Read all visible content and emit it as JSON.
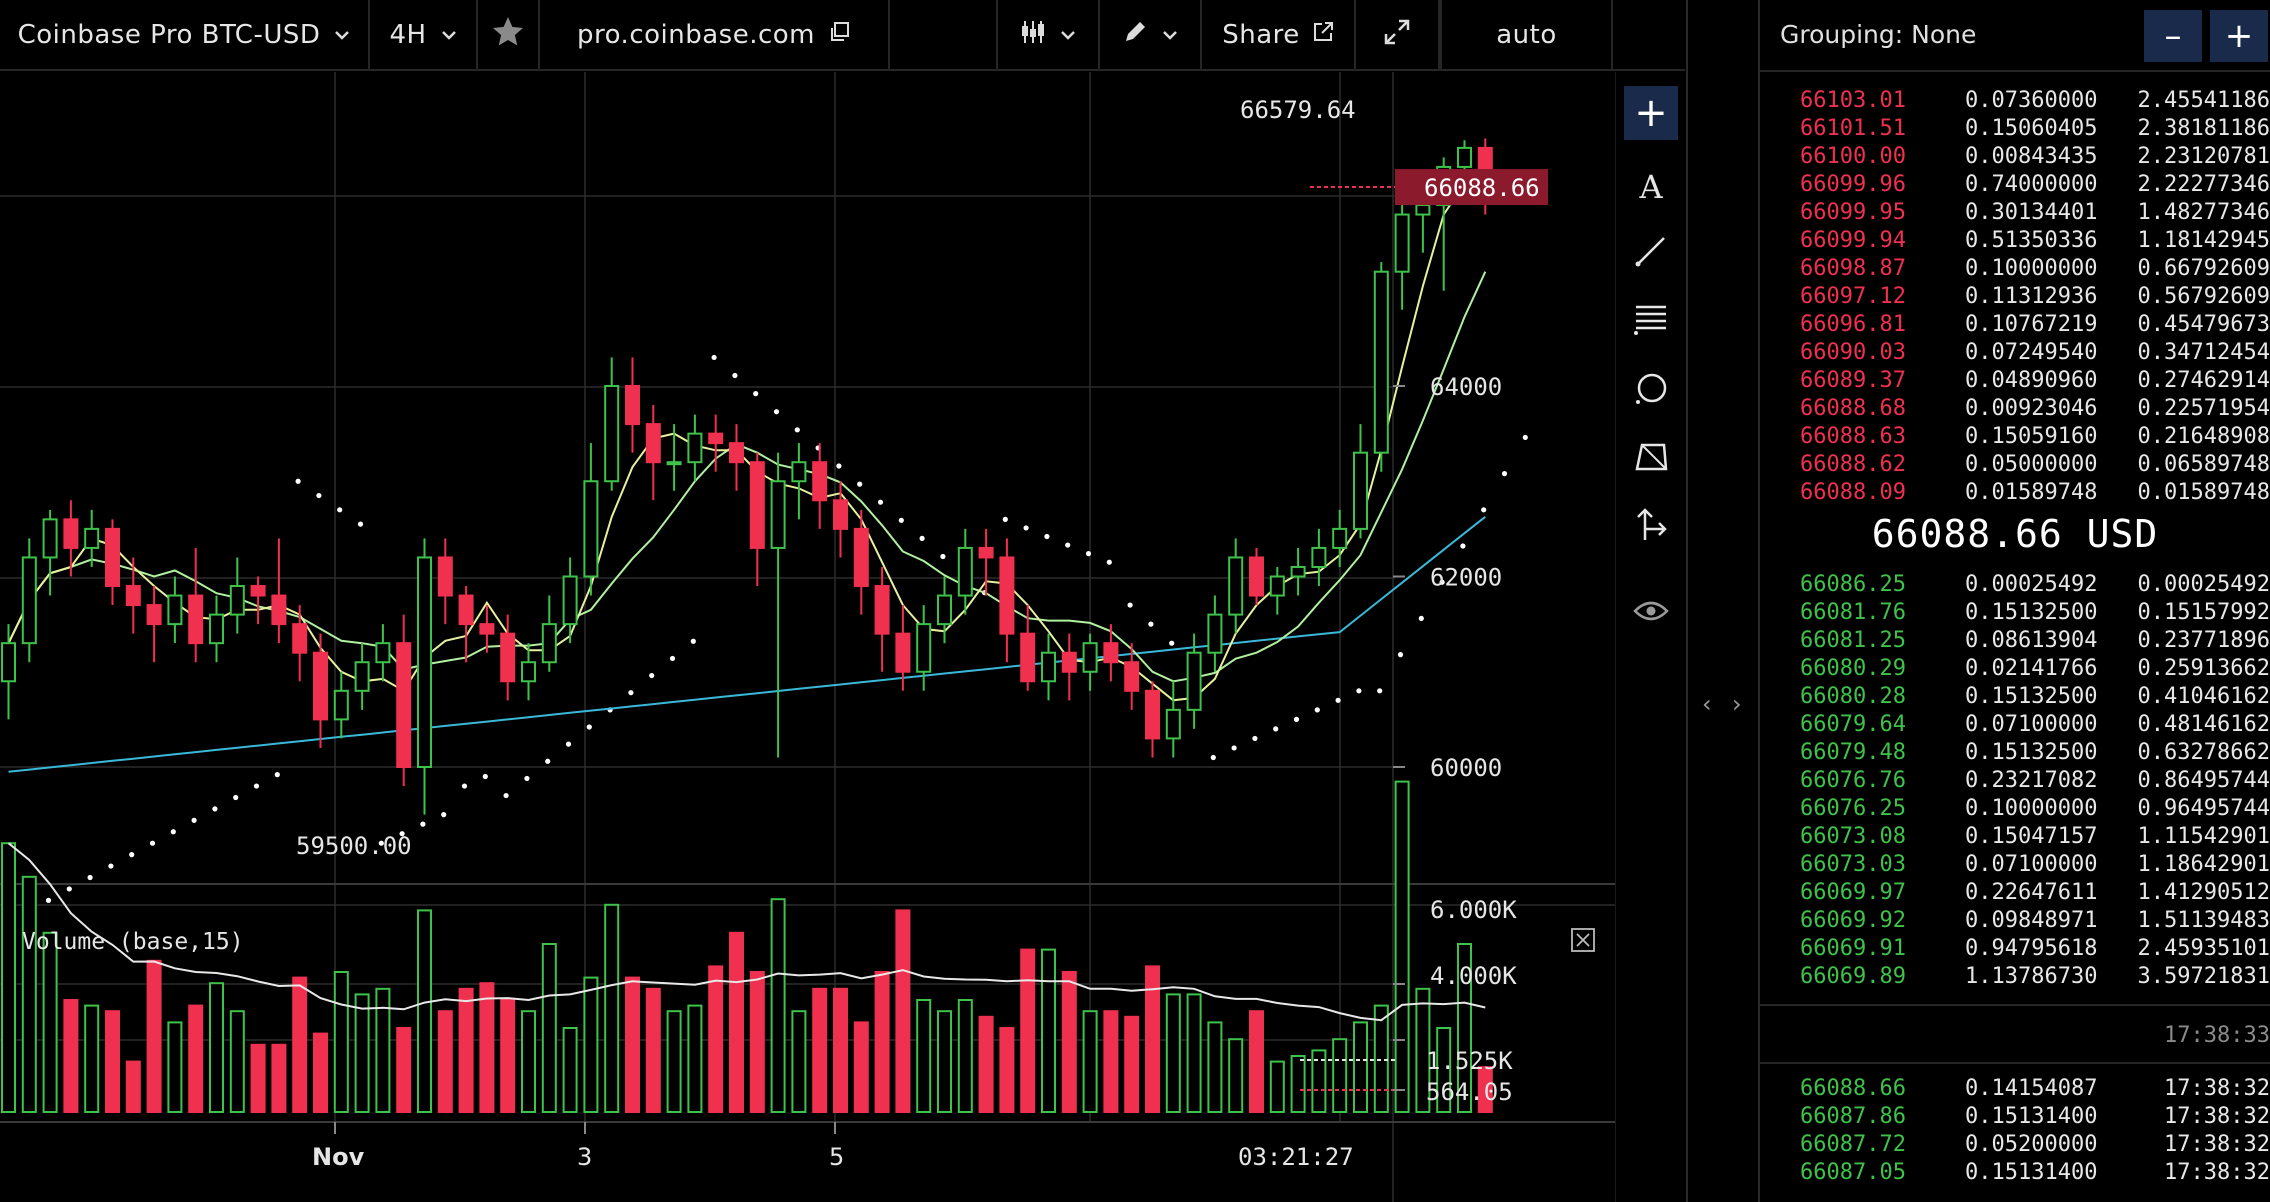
{
  "toolbar": {
    "product_label": "Coinbase Pro BTC-USD",
    "interval_label": "4H",
    "url_label": "pro.coinbase.com",
    "share_label": "Share",
    "scale_label": "auto",
    "icons": {
      "favorite": "star-icon",
      "chart_type": "candles-icon",
      "drawing": "pencil-icon",
      "external": "external-link-icon",
      "fullscreen": "expand-icon",
      "copy": "copy-icon"
    }
  },
  "chart": {
    "price_labels": {
      "p64000": "64000",
      "p62000": "62000",
      "p60000": "60000"
    },
    "last_price_tag": "66088.66",
    "high_label": "66579.64",
    "low_label": "59500.00",
    "volume_title": "Volume (base,15)",
    "volume_labels": {
      "v6000": "6.000K",
      "v4000": "4.000K",
      "v1525": "1.525K",
      "v564": "564.05"
    },
    "time_labels": {
      "nov": "Nov",
      "d3": "3",
      "d5": "5",
      "now": "03:21:27"
    },
    "colors": {
      "up": "#3fc24a",
      "down": "#f0304f",
      "ma_fast": "#e8f0a0",
      "ma_slow": "#b0f0a0",
      "ma_long": "#3ab8d8",
      "sar": "#ffffff"
    }
  },
  "chart_data": {
    "type": "candlestick",
    "title": "Coinbase Pro BTC-USD",
    "interval": "4H",
    "y_ticks": [
      60000,
      62000,
      64000
    ],
    "x_ticks": [
      "Nov",
      "3",
      "5"
    ],
    "last_price": 66088.66,
    "high": 66579.64,
    "low": 59500.0,
    "volume_ticks": [
      "6.000K",
      "4.000K",
      "1.525K",
      "564.05"
    ],
    "volume_last": 564.05,
    "volume_ma": 1525
  },
  "tools": {
    "crosshair": "crosshair-icon",
    "text": "A",
    "trend_line": "trend-line-icon",
    "fib": "fib-levels-icon",
    "circle": "circle-icon",
    "pattern": "pattern-icon",
    "measure": "measure-icon",
    "visibility": "eye-icon"
  },
  "divider": {
    "left": "‹",
    "right": "›"
  },
  "orderbook": {
    "grouping_label": "Grouping: None",
    "minus_label": "–",
    "plus_label": "+",
    "mid_price": "66088.66 USD",
    "asks": [
      {
        "price": "66103.01",
        "size": "0.07360000",
        "total": "2.45541186"
      },
      {
        "price": "66101.51",
        "size": "0.15060405",
        "total": "2.38181186"
      },
      {
        "price": "66100.00",
        "size": "0.00843435",
        "total": "2.23120781"
      },
      {
        "price": "66099.96",
        "size": "0.74000000",
        "total": "2.22277346"
      },
      {
        "price": "66099.95",
        "size": "0.30134401",
        "total": "1.48277346"
      },
      {
        "price": "66099.94",
        "size": "0.51350336",
        "total": "1.18142945"
      },
      {
        "price": "66098.87",
        "size": "0.10000000",
        "total": "0.66792609"
      },
      {
        "price": "66097.12",
        "size": "0.11312936",
        "total": "0.56792609"
      },
      {
        "price": "66096.81",
        "size": "0.10767219",
        "total": "0.45479673"
      },
      {
        "price": "66090.03",
        "size": "0.07249540",
        "total": "0.34712454"
      },
      {
        "price": "66089.37",
        "size": "0.04890960",
        "total": "0.27462914"
      },
      {
        "price": "66088.68",
        "size": "0.00923046",
        "total": "0.22571954"
      },
      {
        "price": "66088.63",
        "size": "0.15059160",
        "total": "0.21648908"
      },
      {
        "price": "66088.62",
        "size": "0.05000000",
        "total": "0.06589748"
      },
      {
        "price": "66088.09",
        "size": "0.01589748",
        "total": "0.01589748"
      }
    ],
    "bids": [
      {
        "price": "66086.25",
        "size": "0.00025492",
        "total": "0.00025492"
      },
      {
        "price": "66081.76",
        "size": "0.15132500",
        "total": "0.15157992"
      },
      {
        "price": "66081.25",
        "size": "0.08613904",
        "total": "0.23771896"
      },
      {
        "price": "66080.29",
        "size": "0.02141766",
        "total": "0.25913662"
      },
      {
        "price": "66080.28",
        "size": "0.15132500",
        "total": "0.41046162"
      },
      {
        "price": "66079.64",
        "size": "0.07100000",
        "total": "0.48146162"
      },
      {
        "price": "66079.48",
        "size": "0.15132500",
        "total": "0.63278662"
      },
      {
        "price": "66076.76",
        "size": "0.23217082",
        "total": "0.86495744"
      },
      {
        "price": "66076.25",
        "size": "0.10000000",
        "total": "0.96495744"
      },
      {
        "price": "66073.08",
        "size": "0.15047157",
        "total": "1.11542901"
      },
      {
        "price": "66073.03",
        "size": "0.07100000",
        "total": "1.18642901"
      },
      {
        "price": "66069.97",
        "size": "0.22647611",
        "total": "1.41290512"
      },
      {
        "price": "66069.92",
        "size": "0.09848971",
        "total": "1.51139483"
      },
      {
        "price": "66069.91",
        "size": "0.94795618",
        "total": "2.45935101"
      },
      {
        "price": "66069.89",
        "size": "1.13786730",
        "total": "3.59721831"
      }
    ],
    "time": "17:38:33",
    "trades": [
      {
        "price": "66088.66",
        "size": "0.14154087",
        "time": "17:38:32"
      },
      {
        "price": "66087.86",
        "size": "0.15131400",
        "time": "17:38:32"
      },
      {
        "price": "66087.72",
        "size": "0.05200000",
        "time": "17:38:32"
      },
      {
        "price": "66087.05",
        "size": "0.15131400",
        "time": "17:38:32"
      }
    ]
  }
}
